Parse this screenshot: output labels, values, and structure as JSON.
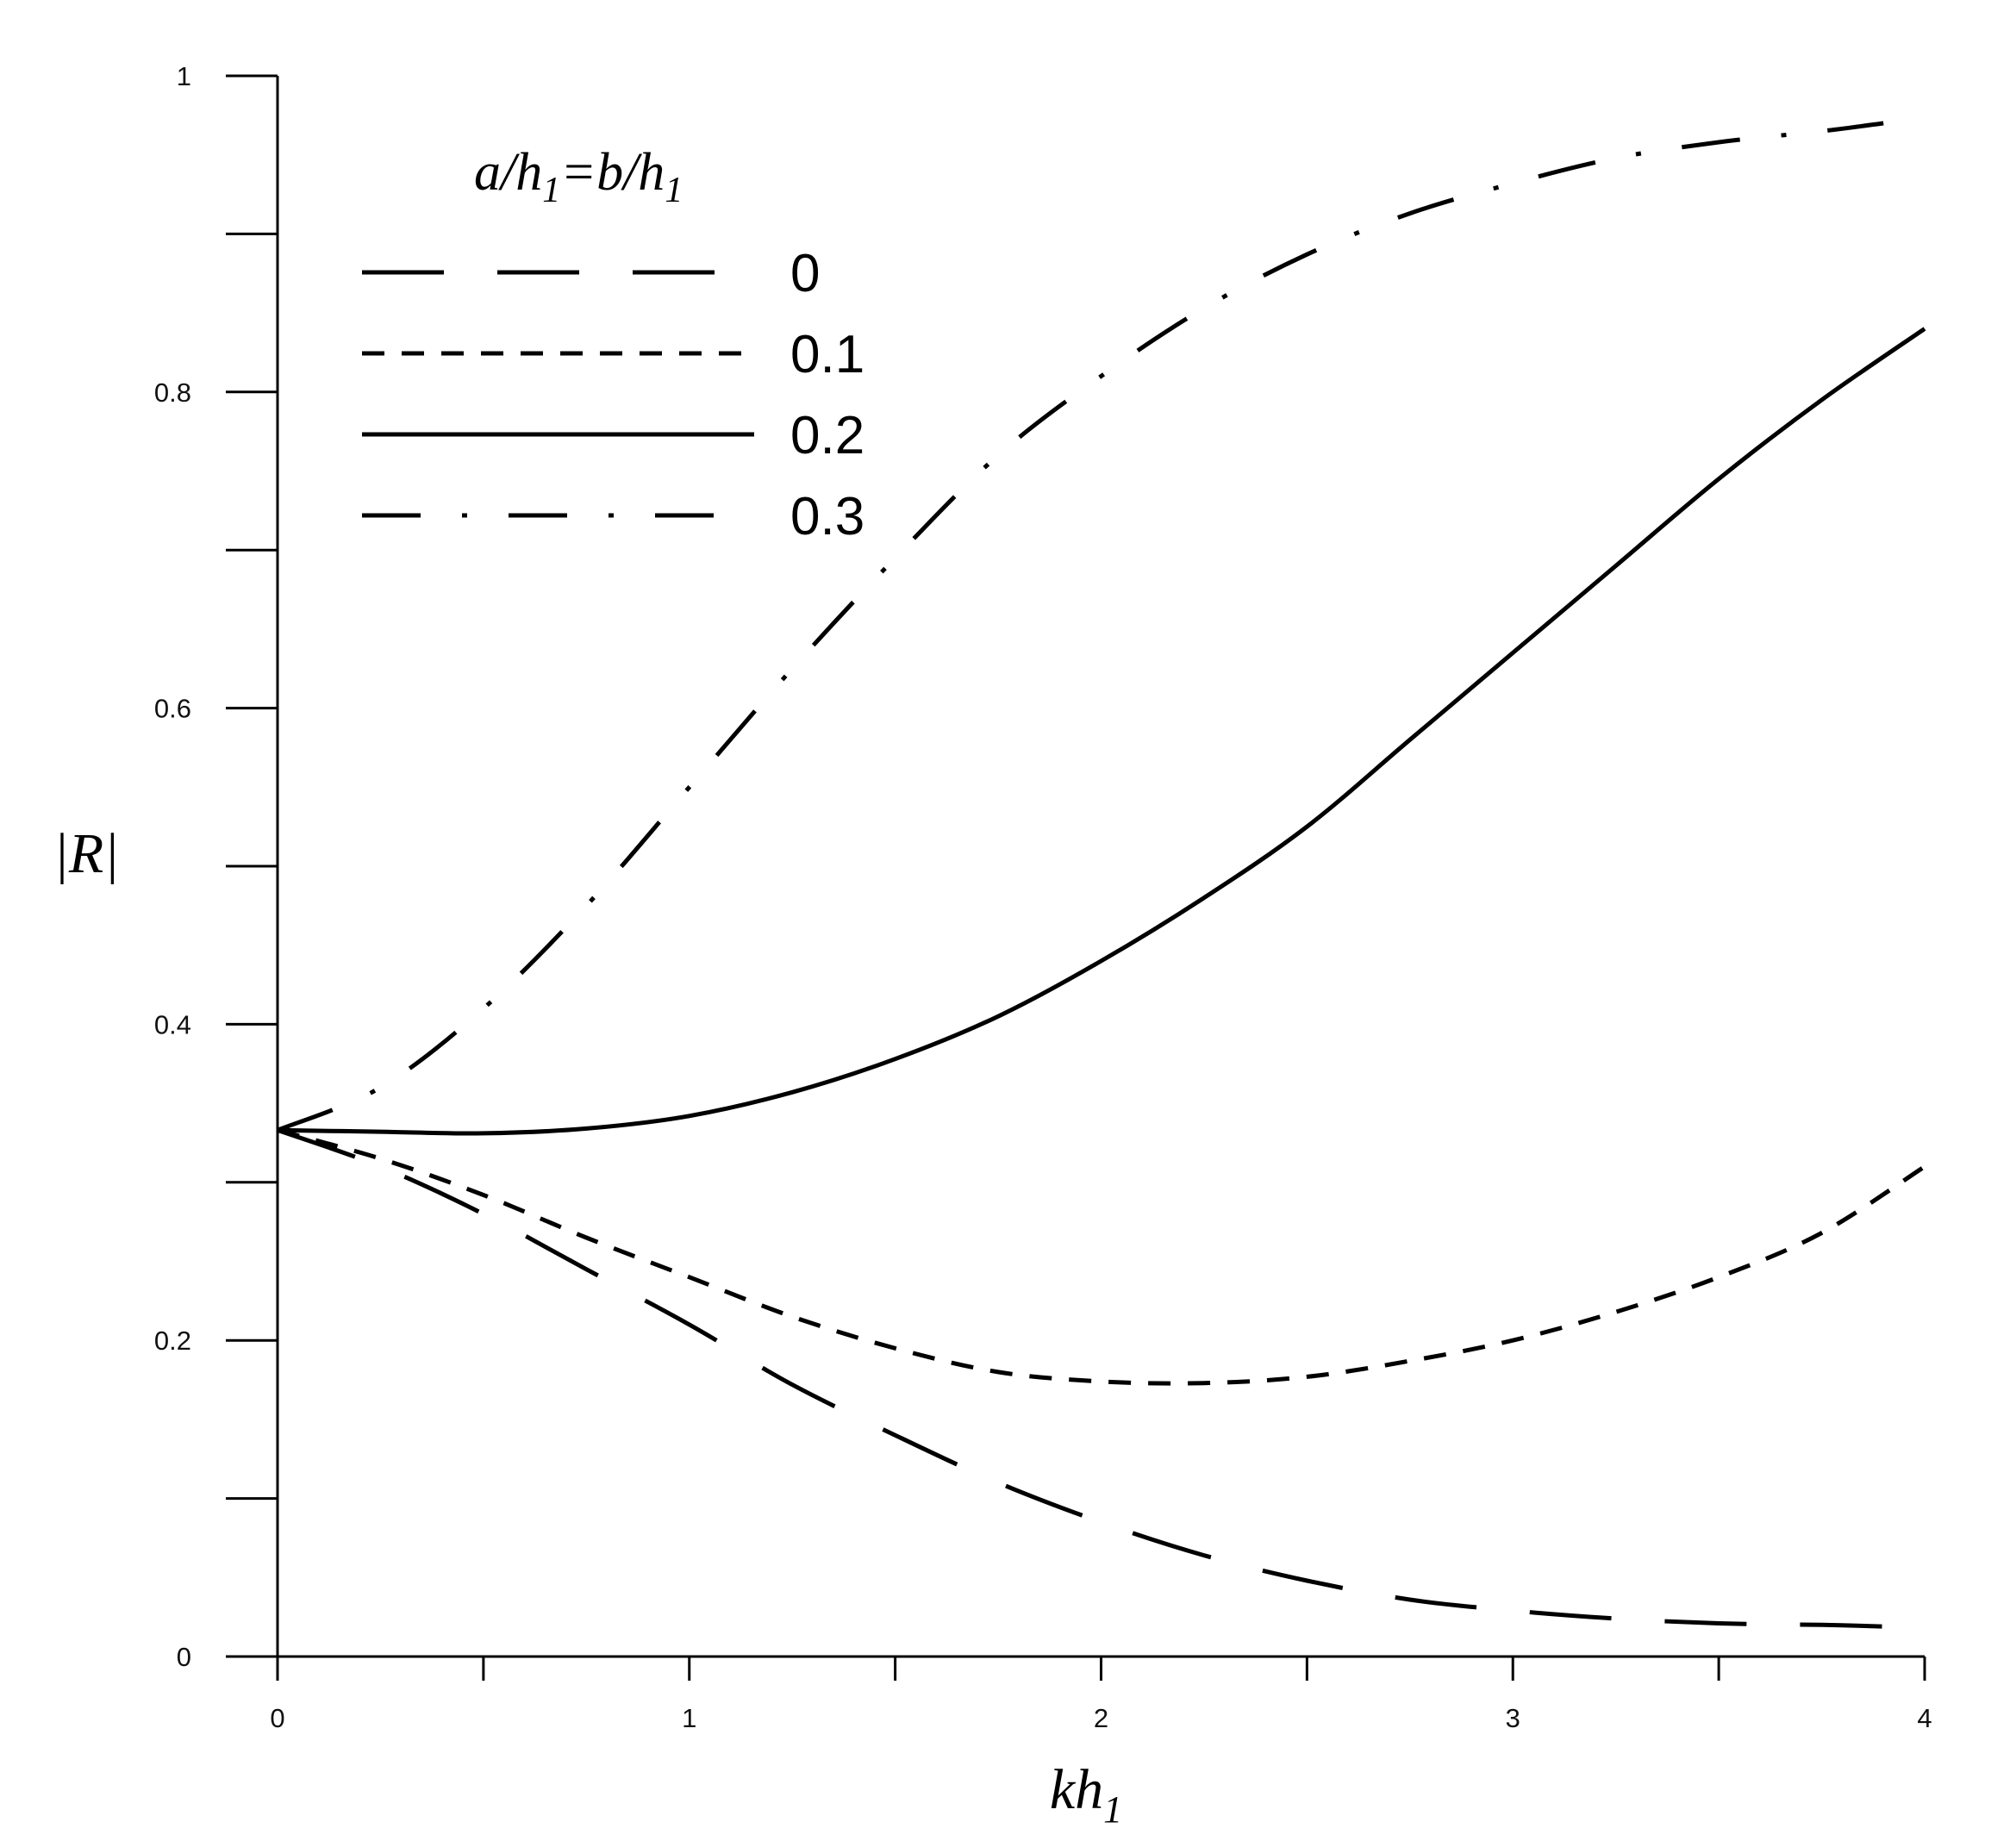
{
  "chart_data": {
    "type": "line",
    "x_ticks": [
      "0",
      "1",
      "2",
      "3",
      "4"
    ],
    "y_ticks": [
      "0",
      "0.2",
      "0.4",
      "0.6",
      "0.8",
      "1"
    ],
    "xlim": [
      0,
      4
    ],
    "ylim": [
      0,
      1
    ],
    "x_minor_step": 0.5,
    "y_minor_step": 0.1,
    "grid": false,
    "legend_position": "top-left",
    "xlabel_main": "kh",
    "xlabel_sub": "1",
    "ylabel": "|R|",
    "legend_title": {
      "part1": "a/h",
      "sub1": "1",
      "part2": "=b/h",
      "sub2": "1"
    },
    "series": [
      {
        "name": "0",
        "dash": "long-dash",
        "x": [
          0,
          0.25,
          0.5,
          0.75,
          1.0,
          1.25,
          1.5,
          1.75,
          2.0,
          2.25,
          2.5,
          2.75,
          3.0,
          3.25,
          3.5,
          3.75,
          3.9
        ],
        "y": [
          0.333,
          0.31,
          0.28,
          0.245,
          0.21,
          0.172,
          0.14,
          0.11,
          0.085,
          0.064,
          0.048,
          0.036,
          0.029,
          0.024,
          0.021,
          0.02,
          0.019
        ]
      },
      {
        "name": "0.1",
        "dash": "short-dash",
        "x": [
          0,
          0.25,
          0.5,
          0.75,
          1.0,
          1.25,
          1.5,
          1.75,
          2.0,
          2.25,
          2.5,
          2.75,
          3.0,
          3.25,
          3.5,
          3.75,
          4.0
        ],
        "y": [
          0.333,
          0.315,
          0.292,
          0.265,
          0.24,
          0.215,
          0.195,
          0.18,
          0.174,
          0.173,
          0.177,
          0.187,
          0.2,
          0.218,
          0.24,
          0.268,
          0.31
        ]
      },
      {
        "name": "0.2",
        "dash": "solid",
        "x": [
          0,
          0.25,
          0.5,
          0.75,
          1.0,
          1.25,
          1.5,
          1.75,
          2.0,
          2.25,
          2.5,
          2.75,
          3.0,
          3.25,
          3.5,
          3.75,
          4.0
        ],
        "y": [
          0.333,
          0.332,
          0.331,
          0.334,
          0.342,
          0.357,
          0.378,
          0.405,
          0.44,
          0.48,
          0.525,
          0.58,
          0.635,
          0.69,
          0.745,
          0.795,
          0.84
        ]
      },
      {
        "name": "0.3",
        "dash": "dash-dot",
        "x": [
          0,
          0.25,
          0.5,
          0.75,
          1.0,
          1.25,
          1.5,
          1.75,
          2.0,
          2.25,
          2.5,
          2.75,
          3.0,
          3.25,
          3.5,
          3.75,
          3.9
        ],
        "y": [
          0.333,
          0.36,
          0.41,
          0.475,
          0.55,
          0.625,
          0.695,
          0.76,
          0.81,
          0.853,
          0.887,
          0.913,
          0.932,
          0.948,
          0.958,
          0.965,
          0.97
        ]
      }
    ]
  }
}
